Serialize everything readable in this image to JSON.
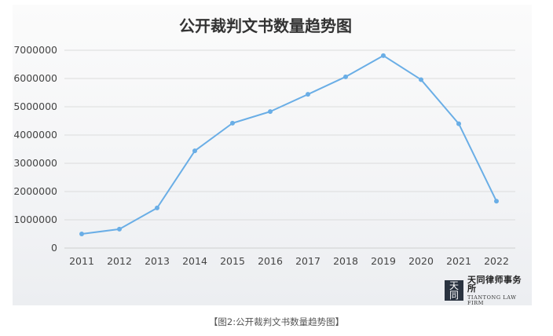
{
  "chart_data": {
    "type": "line",
    "title": "公开裁判文书数量趋势图",
    "categories": [
      "2011",
      "2012",
      "2013",
      "2014",
      "2015",
      "2016",
      "2017",
      "2018",
      "2019",
      "2020",
      "2021",
      "2022"
    ],
    "values": [
      500000,
      670000,
      1420000,
      3440000,
      4420000,
      4830000,
      5440000,
      6060000,
      6810000,
      5960000,
      4400000,
      1660000
    ],
    "y_ticks": [
      "0",
      "1000000",
      "2000000",
      "3000000",
      "4000000",
      "5000000",
      "6000000",
      "7000000"
    ],
    "ylim": [
      0,
      7000000
    ],
    "grid": true,
    "line_color": "#6aaee6",
    "xlabel": "",
    "ylabel": ""
  },
  "logo": {
    "mark_top": "天",
    "mark_bottom": "同",
    "cn_name": "天同律师事务所",
    "en_name": "TIANTONG LAW FIRM"
  },
  "caption": "【图2:公开裁判文书数量趋势图】"
}
